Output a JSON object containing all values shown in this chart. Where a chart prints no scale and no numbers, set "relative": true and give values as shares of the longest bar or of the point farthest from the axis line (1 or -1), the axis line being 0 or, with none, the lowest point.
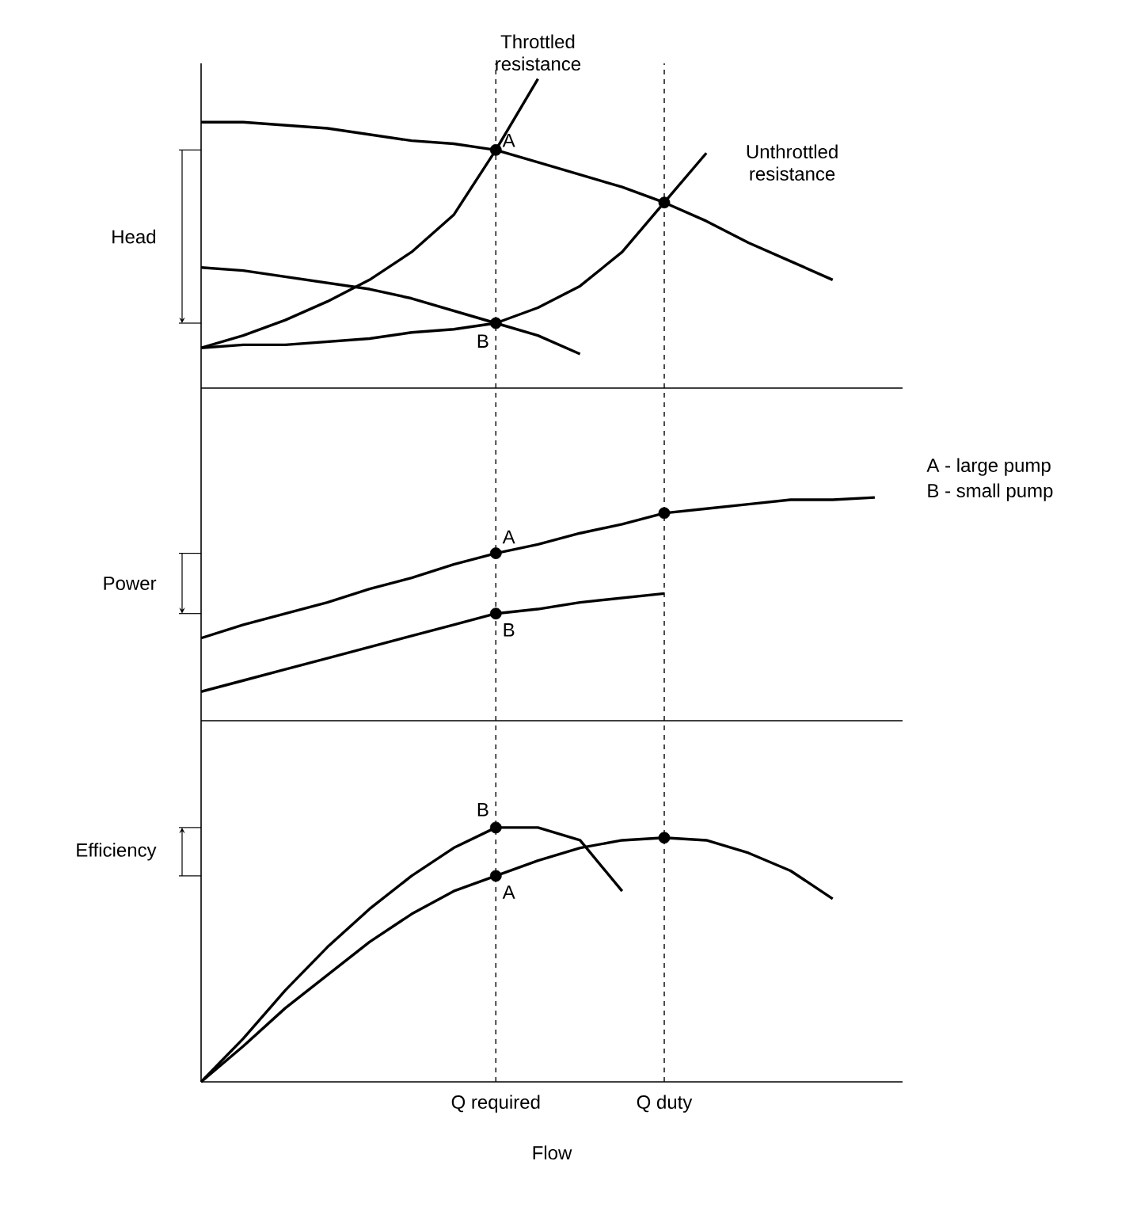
{
  "chart_data": [
    {
      "type": "line",
      "ylabel": "Head",
      "relative": true,
      "tick_labels": false,
      "line_style": "solid",
      "categories": [
        null,
        null,
        null,
        null,
        null,
        null,
        null,
        "Q required",
        null,
        null,
        null,
        "Q duty",
        null,
        null,
        null,
        null,
        null
      ],
      "series": [
        {
          "color": "#000000",
          "values": [
            0.86,
            0.86,
            0.85,
            0.84,
            0.82,
            0.8,
            0.79,
            0.77,
            0.73,
            0.69,
            0.65,
            0.6,
            0.54,
            0.47,
            0.41,
            0.35,
            null
          ]
        },
        {
          "color": "#000000",
          "values": [
            0.39,
            0.38,
            0.36,
            0.34,
            0.32,
            0.29,
            0.25,
            0.21,
            0.17,
            0.11,
            null,
            null,
            null,
            null,
            null,
            null,
            null
          ]
        },
        {
          "name": "Throttled resistance",
          "color": "#000000",
          "values": [
            0.13,
            0.17,
            0.22,
            0.28,
            0.35,
            0.44,
            0.56,
            0.77,
            1,
            null,
            null,
            null,
            null,
            null,
            null,
            null,
            null
          ]
        },
        {
          "name": "Unthrottled resistance",
          "color": "#000000",
          "values": [
            0.13,
            0.14,
            0.14,
            0.15,
            0.16,
            0.18,
            0.19,
            0.21,
            0.26,
            0.33,
            0.44,
            0.6,
            0.76,
            null,
            null,
            null,
            null
          ]
        },
        {
          "type": "scatter",
          "color": "#000000",
          "values": [
            null,
            null,
            null,
            null,
            null,
            null,
            null,
            0.77,
            null,
            null,
            null,
            0.6,
            null,
            null,
            null,
            null,
            null
          ]
        },
        {
          "type": "scatter",
          "color": "#000000",
          "values": [
            null,
            null,
            null,
            null,
            null,
            null,
            null,
            0.21,
            null,
            null,
            null,
            null,
            null,
            null,
            null,
            null,
            null
          ]
        }
      ],
      "ref_lines": [
        {
          "axis": "x",
          "value": "Q required",
          "line_style": "dashed"
        },
        {
          "axis": "x",
          "value": "Q duty",
          "line_style": "dashed"
        }
      ],
      "annotations": [
        {
          "text": "A",
          "x": "Q required",
          "y": 0.77
        },
        {
          "text": "B",
          "x": "Q required",
          "y": 0.21
        }
      ]
    },
    {
      "type": "line",
      "ylabel": "Power",
      "relative": true,
      "tick_labels": false,
      "line_style": "solid",
      "categories": [
        null,
        null,
        null,
        null,
        null,
        null,
        null,
        "Q required",
        null,
        null,
        null,
        "Q duty",
        null,
        null,
        null,
        null,
        null
      ],
      "series": [
        {
          "color": "#000000",
          "values": [
            0.37,
            0.43,
            0.48,
            0.53,
            0.59,
            0.64,
            0.7,
            0.75,
            0.79,
            0.84,
            0.88,
            0.93,
            0.95,
            0.97,
            0.99,
            0.99,
            1
          ]
        },
        {
          "color": "#000000",
          "values": [
            0.13,
            0.18,
            0.23,
            0.28,
            0.33,
            0.38,
            0.43,
            0.48,
            0.5,
            0.53,
            0.55,
            0.57,
            null,
            null,
            null,
            null,
            null
          ]
        },
        {
          "type": "scatter",
          "color": "#000000",
          "values": [
            null,
            null,
            null,
            null,
            null,
            null,
            null,
            0.75,
            null,
            null,
            null,
            0.93,
            null,
            null,
            null,
            null,
            null
          ]
        },
        {
          "type": "scatter",
          "color": "#000000",
          "values": [
            null,
            null,
            null,
            null,
            null,
            null,
            null,
            0.48,
            null,
            null,
            null,
            null,
            null,
            null,
            null,
            null,
            null
          ]
        }
      ],
      "ref_lines": [
        {
          "axis": "x",
          "value": "Q required",
          "line_style": "dashed"
        },
        {
          "axis": "x",
          "value": "Q duty",
          "line_style": "dashed"
        }
      ],
      "annotations": [
        {
          "text": "A",
          "x": "Q required",
          "y": 0.75
        },
        {
          "text": "B",
          "x": "Q required",
          "y": 0.48
        },
        "A - large pump",
        "B - small pump"
      ]
    },
    {
      "type": "line",
      "ylabel": "Efficiency",
      "xlabel": "Flow",
      "relative": true,
      "tick_labels": "x",
      "line_style": "solid",
      "categories": [
        null,
        null,
        null,
        null,
        null,
        null,
        null,
        "Q required",
        null,
        null,
        null,
        "Q duty",
        null,
        null,
        null,
        null,
        null
      ],
      "series": [
        {
          "color": "#000000",
          "values": [
            0,
            0.14,
            0.29,
            0.42,
            0.55,
            0.66,
            0.75,
            0.81,
            0.87,
            0.92,
            0.95,
            0.96,
            0.95,
            0.9,
            0.83,
            0.72,
            null
          ]
        },
        {
          "color": "#000000",
          "values": [
            0,
            0.17,
            0.36,
            0.53,
            0.68,
            0.81,
            0.92,
            1,
            1,
            0.95,
            0.75,
            null,
            null,
            null,
            null,
            null,
            null
          ]
        },
        {
          "type": "scatter",
          "color": "#000000",
          "values": [
            null,
            null,
            null,
            null,
            null,
            null,
            null,
            0.81,
            null,
            null,
            null,
            0.96,
            null,
            null,
            null,
            null,
            null
          ]
        },
        {
          "type": "scatter",
          "color": "#000000",
          "values": [
            null,
            null,
            null,
            null,
            null,
            null,
            null,
            1,
            null,
            null,
            null,
            null,
            null,
            null,
            null,
            null,
            null
          ]
        }
      ],
      "ref_lines": [
        {
          "axis": "x",
          "value": "Q required",
          "line_style": "dashed"
        },
        {
          "axis": "x",
          "value": "Q duty",
          "line_style": "dashed"
        }
      ],
      "annotations": [
        {
          "text": "A",
          "x": "Q required",
          "y": 0.81
        },
        {
          "text": "B",
          "x": "Q required",
          "y": 1
        }
      ]
    }
  ]
}
